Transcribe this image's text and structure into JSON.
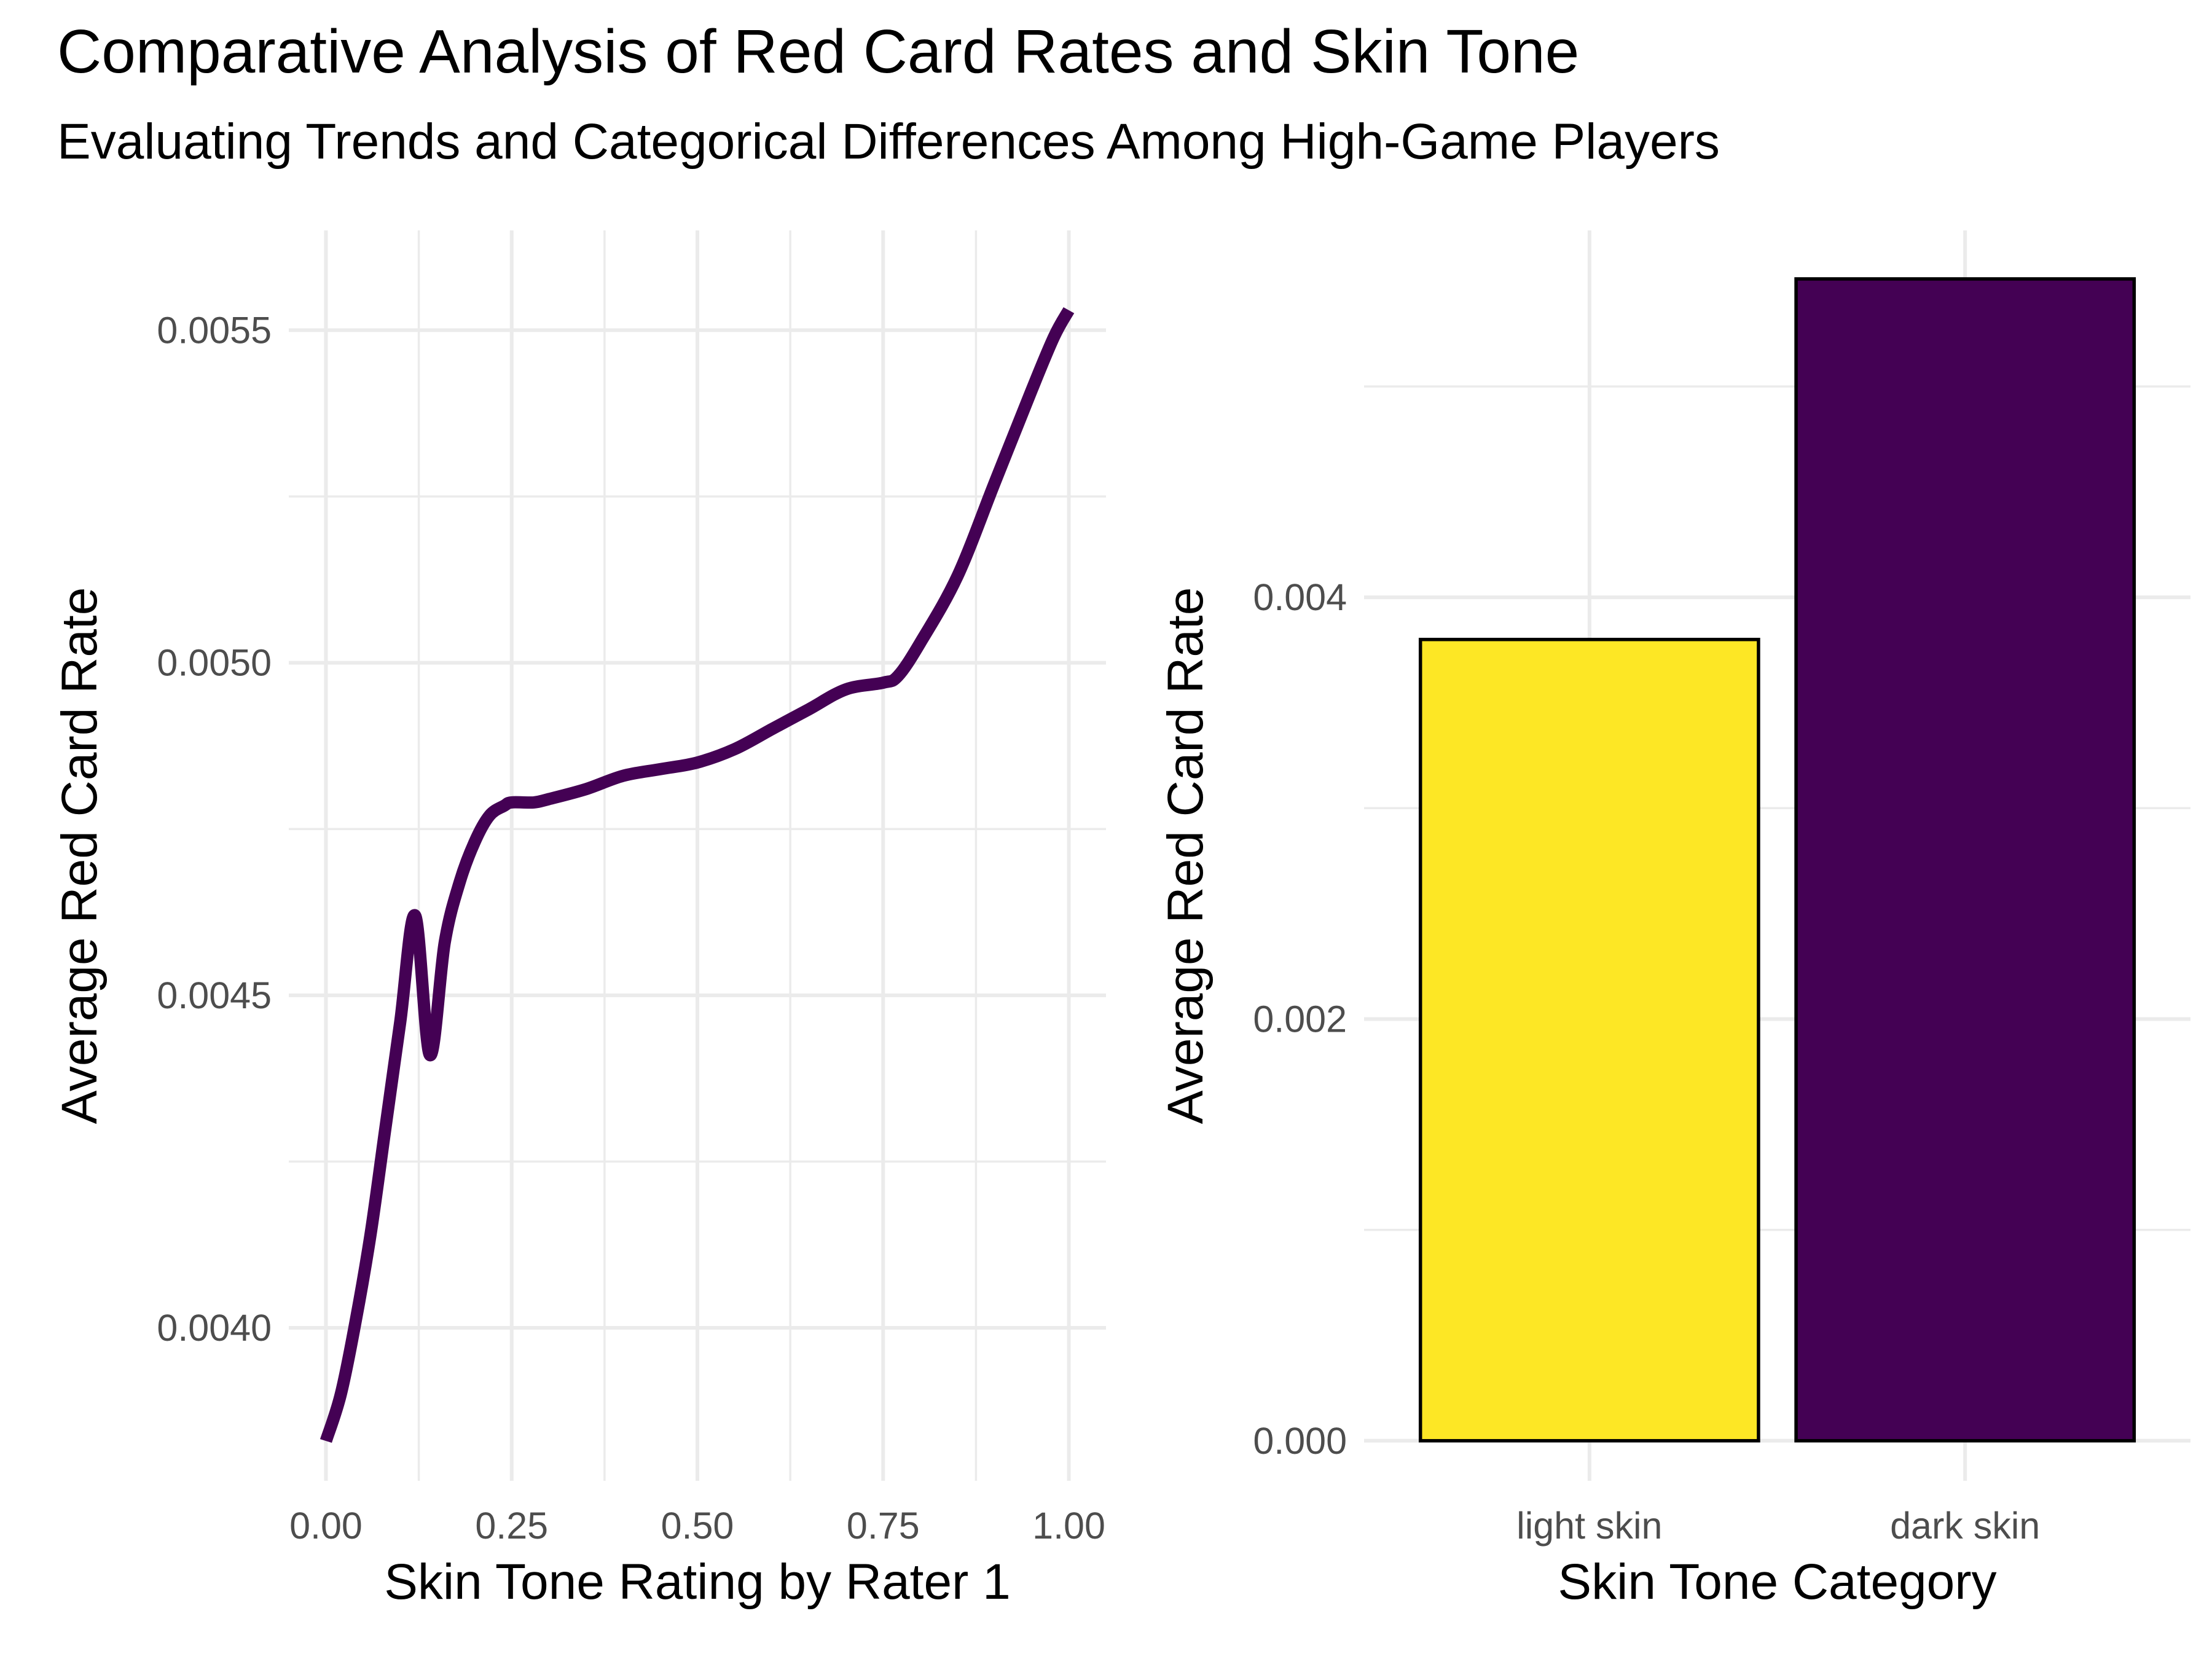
{
  "title": "Comparative Analysis of Red Card Rates and Skin Tone",
  "subtitle": "Evaluating Trends and Categorical Differences Among High-Game Players",
  "chart_data": [
    {
      "type": "line",
      "xlabel": "Skin Tone Rating by Rater 1",
      "ylabel": "Average Red Card Rate",
      "xlim": [
        -0.05,
        1.05
      ],
      "ylim": [
        0.00377,
        0.00565
      ],
      "x_ticks": [
        0.0,
        0.25,
        0.5,
        0.75,
        1.0
      ],
      "x_tick_labels": [
        "0.00",
        "0.25",
        "0.50",
        "0.75",
        "1.00"
      ],
      "y_ticks": [
        0.004,
        0.0045,
        0.005,
        0.0055
      ],
      "y_tick_labels": [
        "0.0040",
        "0.0045",
        "0.0050",
        "0.0055"
      ],
      "grid": true,
      "line_color": "#440154",
      "series": [
        {
          "x": [
            0.0,
            0.02,
            0.04,
            0.06,
            0.08,
            0.1,
            0.12,
            0.14,
            0.16,
            0.18,
            0.2,
            0.22,
            0.24,
            0.25,
            0.28,
            0.3,
            0.35,
            0.4,
            0.45,
            0.5,
            0.55,
            0.6,
            0.65,
            0.7,
            0.75,
            0.77,
            0.8,
            0.85,
            0.9,
            0.95,
            0.98,
            1.0
          ],
          "y": [
            0.00383,
            0.0039,
            0.00401,
            0.00414,
            0.0043,
            0.00446,
            0.00462,
            0.00441,
            0.00458,
            0.00467,
            0.00473,
            0.00477,
            0.004785,
            0.00479,
            0.00479,
            0.004795,
            0.00481,
            0.00483,
            0.00484,
            0.00485,
            0.00487,
            0.0049,
            0.00493,
            0.00496,
            0.00497,
            0.00498,
            0.00503,
            0.00513,
            0.00527,
            0.00541,
            0.00549,
            0.00553
          ]
        }
      ]
    },
    {
      "type": "bar",
      "xlabel": "Skin Tone Category",
      "ylabel": "Average Red Card Rate",
      "categories": [
        "light skin",
        "dark skin"
      ],
      "values": [
        0.0038,
        0.00551
      ],
      "colors": [
        "#fde725",
        "#440154"
      ],
      "ylim": [
        -0.00019,
        0.00574
      ],
      "y_ticks": [
        0.0,
        0.002,
        0.004
      ],
      "y_tick_labels": [
        "0.000",
        "0.002",
        "0.004"
      ],
      "grid": true
    }
  ]
}
